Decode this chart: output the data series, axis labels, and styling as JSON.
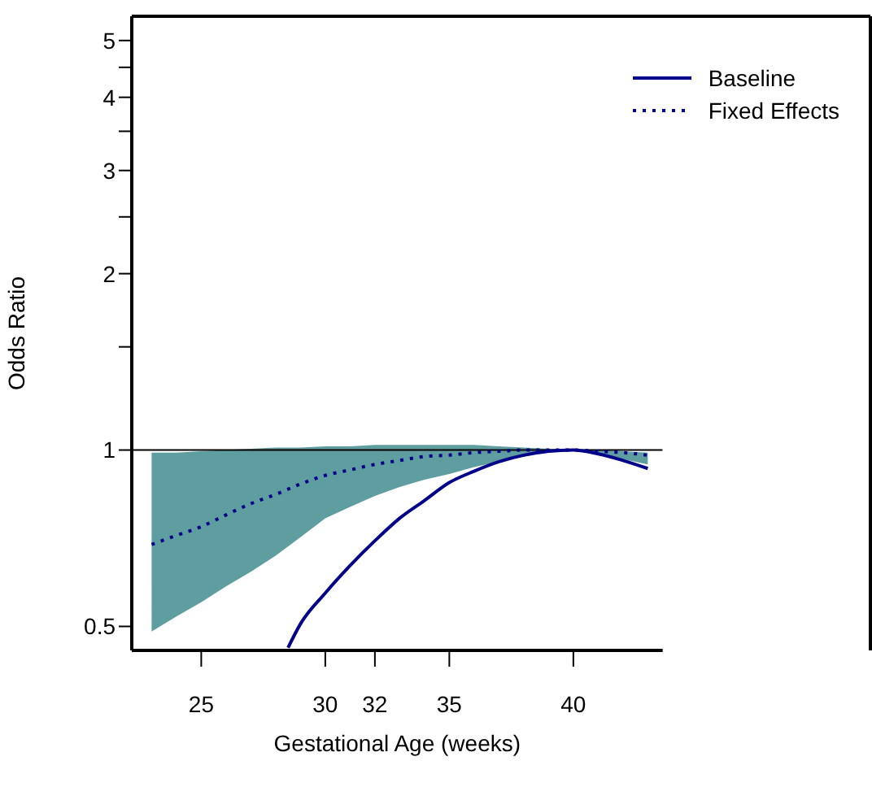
{
  "chart_data": {
    "type": "line",
    "xlabel": "Gestational Age (weeks)",
    "ylabel": "Odds Ratio",
    "log": "y",
    "xlim": [
      22.2,
      43.6
    ],
    "xticks": [
      25,
      30,
      32,
      35,
      40
    ],
    "ylim": [
      0.455,
      5.5
    ],
    "yticks": [
      0.5,
      1,
      {
        "value": 1.5,
        "label": null
      },
      2,
      {
        "value": 2.5,
        "label": null
      },
      3,
      {
        "value": 3.5,
        "label": null
      },
      4,
      {
        "value": 4.5,
        "label": null
      },
      5
    ],
    "legend": "top right",
    "grid": false,
    "ref_lines": [
      {
        "axis": "y",
        "value": 1,
        "color": "#000000"
      }
    ],
    "series": [
      {
        "name": "Baseline",
        "color": "#00008b",
        "line_style": "solid",
        "x": [
          28.5,
          29,
          30,
          31,
          32,
          33,
          34,
          35,
          36,
          37,
          38,
          39,
          40,
          41,
          42,
          43
        ],
        "values": [
          0.46,
          0.505,
          0.57,
          0.635,
          0.7,
          0.765,
          0.82,
          0.88,
          0.92,
          0.955,
          0.98,
          0.995,
          1.0,
          0.985,
          0.96,
          0.93
        ]
      },
      {
        "name": "Fixed Effects",
        "color": "#00008b",
        "line_style": "dotted",
        "x": [
          23,
          24,
          25,
          26,
          27,
          28,
          29,
          30,
          31,
          32,
          33,
          34,
          35,
          36,
          37,
          38,
          39,
          40,
          41,
          42,
          43
        ],
        "values": [
          0.69,
          0.715,
          0.74,
          0.775,
          0.81,
          0.84,
          0.875,
          0.905,
          0.925,
          0.945,
          0.96,
          0.975,
          0.98,
          0.99,
          0.995,
          1.0,
          1.0,
          1.0,
          0.995,
          0.99,
          0.98
        ],
        "lower": [
          0.49,
          0.52,
          0.55,
          0.585,
          0.62,
          0.66,
          0.71,
          0.765,
          0.8,
          0.835,
          0.865,
          0.89,
          0.91,
          0.935,
          0.955,
          0.975,
          0.99,
          1.0,
          0.98,
          0.965,
          0.945
        ],
        "upper": [
          0.99,
          0.99,
          0.995,
          1.0,
          1.005,
          1.01,
          1.01,
          1.015,
          1.015,
          1.02,
          1.02,
          1.02,
          1.02,
          1.02,
          1.015,
          1.01,
          1.005,
          1.0,
          1.0,
          0.995,
          0.99
        ]
      }
    ]
  }
}
